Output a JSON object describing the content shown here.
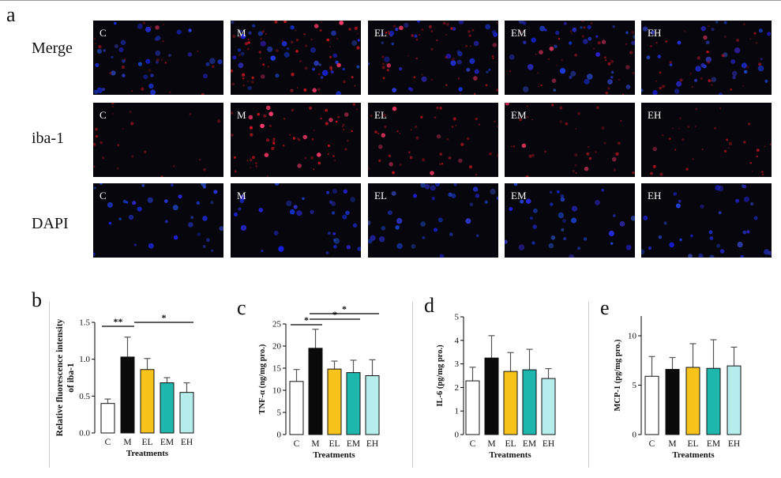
{
  "panel_a": {
    "letter": "a",
    "rows": [
      {
        "label": "Merge",
        "kind": "merge"
      },
      {
        "label": "iba-1",
        "kind": "iba"
      },
      {
        "label": "DAPI",
        "kind": "dapi"
      }
    ],
    "columns": [
      "C",
      "M",
      "EL",
      "EM",
      "EH"
    ],
    "intensity": [
      0.25,
      1.0,
      0.7,
      0.5,
      0.45
    ]
  },
  "colors": {
    "C": "#ffffff",
    "M": "#0a0a0a",
    "EL": "#f7c21a",
    "EM": "#1fb6ad",
    "EH": "#b5ecec"
  },
  "chart_data": [
    {
      "panel": "b",
      "type": "bar",
      "categories": [
        "C",
        "M",
        "EL",
        "EM",
        "EH"
      ],
      "values": [
        0.4,
        1.03,
        0.86,
        0.68,
        0.55
      ],
      "errors": [
        0.06,
        0.27,
        0.15,
        0.07,
        0.13
      ],
      "ylim": [
        0,
        1.5
      ],
      "yticks": [
        "0.0",
        "0.5",
        "1.0",
        "1.5"
      ],
      "ylabel": "Relative  fluorescence intensity of iba-1",
      "xlabel": "Treatments",
      "sig": [
        {
          "from": 0,
          "to": 1,
          "label": "**"
        },
        {
          "from": 1,
          "to": 4,
          "label": "*"
        }
      ]
    },
    {
      "panel": "c",
      "type": "bar",
      "categories": [
        "C",
        "M",
        "EL",
        "EM",
        "EH"
      ],
      "values": [
        12.0,
        19.5,
        14.8,
        14.0,
        13.3
      ],
      "errors": [
        2.7,
        4.3,
        1.8,
        2.8,
        3.6
      ],
      "ylim": [
        0,
        25
      ],
      "yticks": [
        "0",
        "5",
        "10",
        "15",
        "20",
        "25"
      ],
      "ylabel": "TNF-α (ng/mg pro.)",
      "xlabel": "Treatments",
      "sig": [
        {
          "from": 0,
          "to": 1,
          "label": "*"
        },
        {
          "from": 1,
          "to": 3,
          "label": "*"
        },
        {
          "from": 1,
          "to": 4,
          "label": "*"
        }
      ]
    },
    {
      "panel": "d",
      "type": "bar",
      "categories": [
        "C",
        "M",
        "EL",
        "EM",
        "EH"
      ],
      "values": [
        2.28,
        3.25,
        2.68,
        2.75,
        2.38
      ],
      "errors": [
        0.58,
        0.95,
        0.8,
        0.87,
        0.42
      ],
      "ylim": [
        0,
        5
      ],
      "yticks": [
        "0",
        "1",
        "2",
        "3",
        "4",
        "5"
      ],
      "ylabel": "IL-6 (pg/mg pro.)",
      "xlabel": "Treatments",
      "sig": []
    },
    {
      "panel": "e",
      "type": "bar",
      "categories": [
        "C",
        "M",
        "EL",
        "EM",
        "EH"
      ],
      "values": [
        5.9,
        6.6,
        6.8,
        6.7,
        6.95
      ],
      "errors": [
        2.0,
        1.2,
        2.4,
        2.9,
        1.9
      ],
      "ylim": [
        0,
        12
      ],
      "yticks": [
        "0",
        "5",
        "10"
      ],
      "ytick_values": [
        0,
        5,
        10
      ],
      "ylabel": "MCP-1 (pg/mg pro.)",
      "xlabel": "Treatments",
      "sig": []
    }
  ]
}
